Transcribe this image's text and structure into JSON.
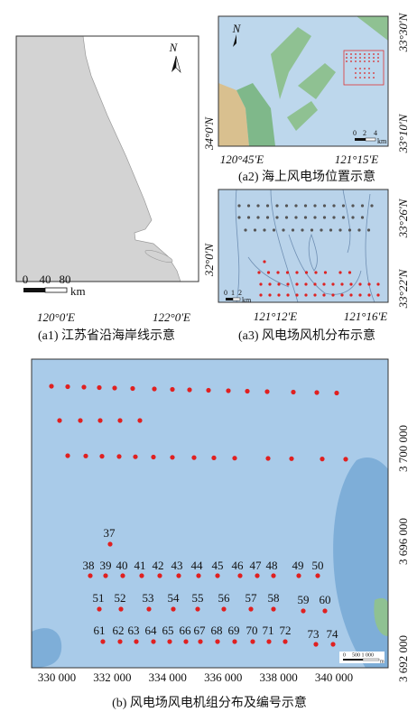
{
  "panels": [
    {
      "caption": "(a1) 江苏省沿海岸线示意",
      "north": "N",
      "scale_labels": [
        0,
        40,
        80
      ],
      "scale_unit": "km",
      "x_labels": [
        "120°0′E",
        "122°0′E"
      ],
      "y_labels": [
        "34°0′N",
        "32°0′N"
      ]
    },
    {
      "caption": "(a2) 海上风电场位置示意",
      "north": "N",
      "scale_labels": [
        0,
        2,
        4
      ],
      "scale_unit": "km",
      "x_labels": [
        "120°45′E",
        "121°15′E"
      ],
      "y_labels": [
        "33°30′N",
        "33°10′N"
      ]
    },
    {
      "caption": "(a3) 风电场风机分布示意",
      "scale_labels": [
        0,
        1,
        2
      ],
      "scale_unit": "km",
      "x_labels": [
        "121°12′E",
        "121°16′E"
      ],
      "y_labels": [
        "33°26′N",
        "33°22′N"
      ]
    },
    {
      "caption": "(b) 风电场风电机组分布及编号示意",
      "scale_labels": [
        0,
        "500 1 000"
      ],
      "scale_unit": "m",
      "x_labels": [
        "330 000",
        "332 000",
        "334 000",
        "336 000",
        "338 000",
        "340 000"
      ],
      "y_labels": [
        "3 700 000",
        "3 696 000",
        "3 692 000"
      ],
      "turbine_ids": [
        37,
        38,
        39,
        40,
        41,
        42,
        43,
        44,
        45,
        46,
        47,
        48,
        49,
        50,
        51,
        52,
        53,
        54,
        55,
        56,
        57,
        58,
        59,
        60,
        61,
        62,
        63,
        64,
        65,
        66,
        67,
        68,
        69,
        70,
        71,
        72,
        73,
        74
      ]
    }
  ]
}
